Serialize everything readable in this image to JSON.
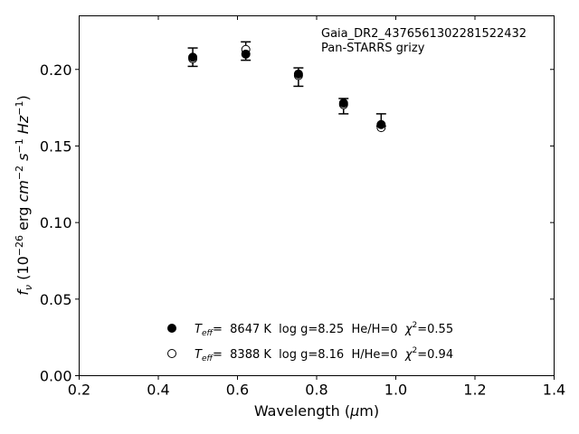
{
  "chart_data": {
    "type": "scatter",
    "title": "",
    "annotation": {
      "lines": [
        "Gaia_DR2_4376561302281522432",
        "Pan-STARRS grizy"
      ]
    },
    "xlabel": "Wavelength (μm)",
    "ylabel": "f_ν (10^-26 erg cm^-2 s^-1 Hz^-1)",
    "xlim": [
      0.2,
      1.4
    ],
    "ylim": [
      0.0,
      0.235
    ],
    "xticks": [
      0.2,
      0.4,
      0.6,
      0.8,
      1.0,
      1.2,
      1.4
    ],
    "xtick_labels": [
      "0.2",
      "0.4",
      "0.6",
      "0.8",
      "1.0",
      "1.2",
      "1.4"
    ],
    "yticks": [
      0.0,
      0.05,
      0.1,
      0.15,
      0.2
    ],
    "ytick_labels": [
      "0.00",
      "0.05",
      "0.10",
      "0.15",
      "0.20"
    ],
    "grid": false,
    "legend_position": "lower-center",
    "observed": {
      "x": [
        0.487,
        0.621,
        0.754,
        0.868,
        0.963
      ],
      "y": [
        0.208,
        0.212,
        0.195,
        0.176,
        0.167
      ],
      "yerr": [
        0.006,
        0.006,
        0.006,
        0.005,
        0.004
      ]
    },
    "series": [
      {
        "name": "T_eff= 8647 K log g=8.25 He/H=0 χ²=0.55",
        "marker": "filled-circle",
        "legend": {
          "teff_label": "T",
          "teff_sub": "eff",
          "rest": "=  8647 K  log g=8.25  He/H=0  ",
          "chi_label": "χ",
          "chi_sup": "2",
          "chi_value": "=0.55"
        },
        "x": [
          0.487,
          0.621,
          0.754,
          0.868,
          0.963
        ],
        "y": [
          0.208,
          0.21,
          0.197,
          0.178,
          0.164
        ]
      },
      {
        "name": "T_eff= 8388 K log g=8.16 H/He=0 χ²=0.94",
        "marker": "open-circle",
        "legend": {
          "teff_label": "T",
          "teff_sub": "eff",
          "rest": "=  8388 K  log g=8.16  H/He=0  ",
          "chi_label": "χ",
          "chi_sup": "2",
          "chi_value": "=0.94"
        },
        "x": [
          0.487,
          0.621,
          0.754,
          0.868,
          0.963
        ],
        "y": [
          0.207,
          0.213,
          0.196,
          0.177,
          0.162
        ]
      }
    ]
  }
}
